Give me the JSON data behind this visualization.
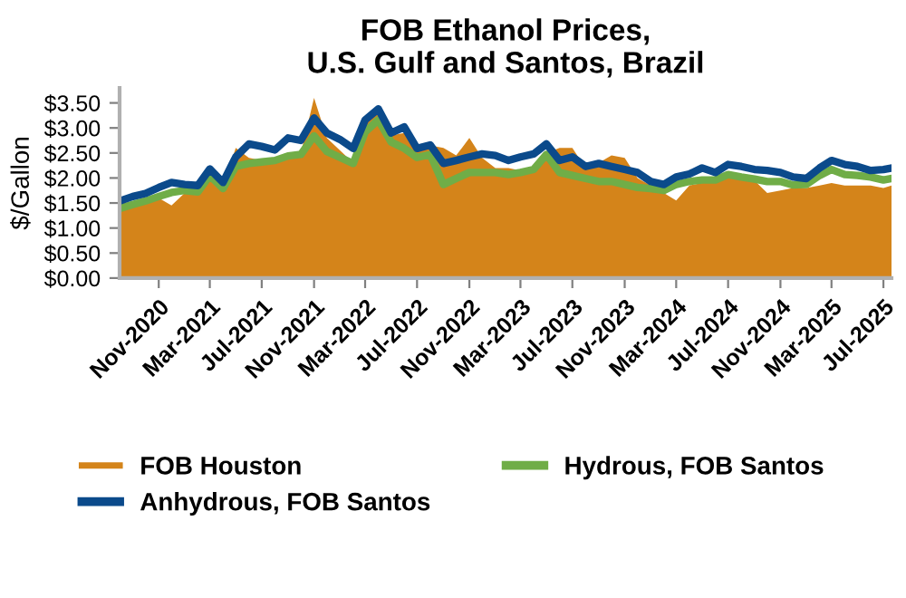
{
  "chart_data": {
    "type": "line",
    "title": "FOB Ethanol Prices,\nU.S. Gulf and Santos, Brazil",
    "ylabel": "$/Gallon",
    "x": [
      "2020-08-01",
      "2020-09-01",
      "2020-10-01",
      "2020-11-01",
      "2020-12-01",
      "2021-01-01",
      "2021-02-01",
      "2021-03-01",
      "2021-04-01",
      "2021-05-01",
      "2021-06-01",
      "2021-07-01",
      "2021-08-01",
      "2021-09-01",
      "2021-10-01",
      "2021-11-01",
      "2021-12-01",
      "2022-01-01",
      "2022-02-01",
      "2022-03-01",
      "2022-04-01",
      "2022-05-01",
      "2022-06-01",
      "2022-07-01",
      "2022-08-01",
      "2022-09-01",
      "2022-10-01",
      "2022-11-01",
      "2022-12-01",
      "2023-01-01",
      "2023-02-01",
      "2023-03-01",
      "2023-04-01",
      "2023-05-01",
      "2023-06-01",
      "2023-07-01",
      "2023-08-01",
      "2023-09-01",
      "2023-10-01",
      "2023-11-01",
      "2023-12-01",
      "2024-01-01",
      "2024-02-01",
      "2024-03-01",
      "2024-04-01",
      "2024-05-01",
      "2024-06-01",
      "2024-07-01",
      "2024-08-01",
      "2024-09-01",
      "2024-10-01",
      "2024-11-01",
      "2024-12-01",
      "2025-01-01",
      "2025-02-01",
      "2025-03-01",
      "2025-04-01",
      "2025-05-01",
      "2025-06-01",
      "2025-07-01",
      "2025-07-20"
    ],
    "series": [
      {
        "name": "FOB Houston",
        "type": "area",
        "color": "#d4841a",
        "values": [
          1.51,
          1.5,
          1.55,
          1.6,
          1.45,
          1.7,
          1.75,
          2.1,
          1.85,
          2.6,
          2.4,
          2.35,
          2.4,
          2.45,
          2.5,
          3.6,
          2.8,
          2.55,
          2.3,
          3.1,
          3.3,
          2.85,
          2.9,
          2.6,
          2.65,
          2.6,
          2.45,
          2.8,
          2.4,
          2.2,
          2.2,
          2.15,
          2.2,
          2.5,
          2.6,
          2.6,
          2.2,
          2.3,
          2.45,
          2.4,
          2.0,
          1.85,
          1.7,
          1.55,
          1.85,
          1.9,
          1.9,
          2.0,
          2.0,
          1.95,
          1.7,
          1.75,
          1.8,
          1.8,
          1.85,
          1.9,
          1.85,
          1.85,
          1.85,
          1.8,
          1.85
        ]
      },
      {
        "name": "Hydrous, FOB Santos",
        "color": "#70ad47",
        "values": [
          1.39,
          1.47,
          1.54,
          1.63,
          1.71,
          1.75,
          1.72,
          2.05,
          1.79,
          2.23,
          2.29,
          2.32,
          2.35,
          2.44,
          2.47,
          2.84,
          2.53,
          2.41,
          2.29,
          2.92,
          3.16,
          2.72,
          2.59,
          2.41,
          2.47,
          1.87,
          1.99,
          2.11,
          2.11,
          2.11,
          2.07,
          2.11,
          2.17,
          2.47,
          2.11,
          2.05,
          1.99,
          1.93,
          1.93,
          1.87,
          1.81,
          1.79,
          1.75,
          1.87,
          1.93,
          1.96,
          1.96,
          2.07,
          2.02,
          1.98,
          1.93,
          1.93,
          1.86,
          1.87,
          2.05,
          2.17,
          2.07,
          2.05,
          2.02,
          1.96,
          1.99
        ]
      },
      {
        "name": "Anhydrous, FOB Santos",
        "color": "#0b4a8b",
        "values": [
          1.54,
          1.63,
          1.69,
          1.81,
          1.91,
          1.87,
          1.85,
          2.18,
          1.91,
          2.42,
          2.68,
          2.63,
          2.56,
          2.8,
          2.75,
          3.2,
          2.9,
          2.77,
          2.59,
          3.16,
          3.38,
          2.9,
          3.02,
          2.59,
          2.66,
          2.29,
          2.35,
          2.42,
          2.48,
          2.45,
          2.35,
          2.42,
          2.48,
          2.68,
          2.35,
          2.42,
          2.23,
          2.29,
          2.23,
          2.17,
          2.11,
          1.93,
          1.87,
          2.02,
          2.08,
          2.2,
          2.11,
          2.27,
          2.23,
          2.17,
          2.15,
          2.11,
          2.02,
          1.99,
          2.2,
          2.35,
          2.27,
          2.23,
          2.15,
          2.17,
          2.2
        ]
      }
    ],
    "xlim": [
      "2020-08-01",
      "2025-07-20"
    ],
    "xticks": [
      {
        "value": "2020-11-01",
        "label": "Nov-2020"
      },
      {
        "value": "2021-03-01",
        "label": "Mar-2021"
      },
      {
        "value": "2021-07-01",
        "label": "Jul-2021"
      },
      {
        "value": "2021-11-01",
        "label": "Nov-2021"
      },
      {
        "value": "2022-03-01",
        "label": "Mar-2022"
      },
      {
        "value": "2022-07-01",
        "label": "Jul-2022"
      },
      {
        "value": "2022-11-01",
        "label": "Nov-2022"
      },
      {
        "value": "2023-03-01",
        "label": "Mar-2023"
      },
      {
        "value": "2023-07-01",
        "label": "Jul-2023"
      },
      {
        "value": "2023-11-01",
        "label": "Nov-2023"
      },
      {
        "value": "2024-03-01",
        "label": "Mar-2024"
      },
      {
        "value": "2024-07-01",
        "label": "Jul-2024"
      },
      {
        "value": "2024-11-01",
        "label": "Nov-2024"
      },
      {
        "value": "2025-03-01",
        "label": "Mar-2025"
      },
      {
        "value": "2025-07-01",
        "label": "Jul-2025"
      }
    ],
    "ylim": [
      0,
      3.8
    ],
    "yticks": [
      {
        "value": 0,
        "label": "$0.00"
      },
      {
        "value": 0.5,
        "label": "$0.50"
      },
      {
        "value": 1,
        "label": "$1.00"
      },
      {
        "value": 1.5,
        "label": "$1.50"
      },
      {
        "value": 2,
        "label": "$2.00"
      },
      {
        "value": 2.5,
        "label": "$2.50"
      },
      {
        "value": 3,
        "label": "$3.00"
      },
      {
        "value": 3.5,
        "label": "$3.50"
      }
    ],
    "grid": false,
    "legend": "bottom",
    "line_style": "solid",
    "marker": "none"
  }
}
